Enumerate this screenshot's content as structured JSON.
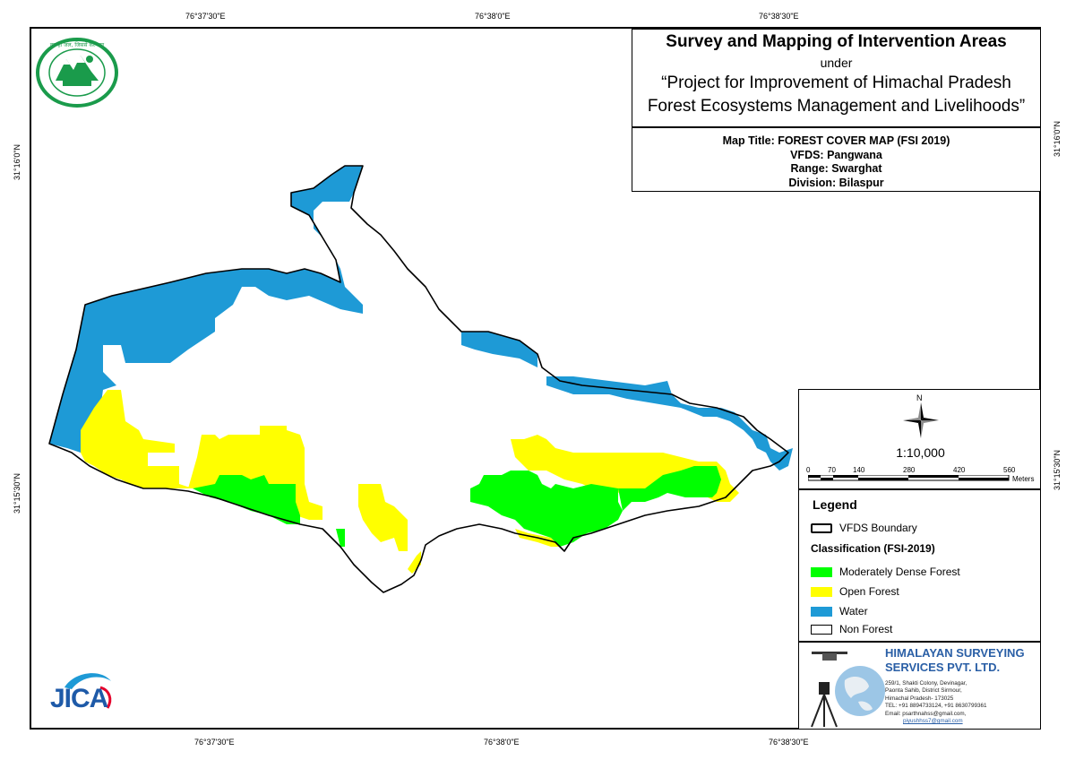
{
  "coordinates": {
    "top": [
      "76°37'30\"E",
      "76°38'0\"E",
      "76°38'30\"E"
    ],
    "bottom": [
      "76°37'30\"E",
      "76°38'0\"E",
      "76°38'30\"E"
    ],
    "left": [
      "31°16'0\"N",
      "31°15'30\"N"
    ],
    "right": [
      "31°16'0\"N",
      "31°15'30\"N"
    ]
  },
  "title_block": {
    "title": "Survey and Mapping of Intervention Areas",
    "under": "under",
    "project_line1": "“Project for Improvement of Himachal Pradesh",
    "project_line2": "Forest Ecosystems Management and Livelihoods”"
  },
  "info": {
    "map_title": "Map Title: FOREST COVER MAP (FSI 2019)",
    "vfds": "VFDS: Pangwana",
    "range": "Range: Swarghat",
    "division": "Division: Bilaspur"
  },
  "north_label": "N",
  "scale": {
    "ratio": "1:10,000",
    "ticks": [
      "0",
      "70",
      "140",
      "280",
      "420",
      "560"
    ],
    "unit": "Meters"
  },
  "legend": {
    "title": "Legend",
    "boundary": "VFDS Boundary",
    "classification_title": "Classification (FSI-2019)",
    "items": [
      {
        "label": "Moderately Dense Forest",
        "color": "#00ff00"
      },
      {
        "label": "Open Forest",
        "color": "#ffff00"
      },
      {
        "label": "Water",
        "color": "#1e9ad6"
      },
      {
        "label": "Non Forest",
        "color": "#ffffff"
      }
    ]
  },
  "company": {
    "name_line1": "HIMALAYAN SURVEYING",
    "name_line2": "SERVICES PVT. LTD.",
    "address": [
      "259/1, Shakti Colony, Devinagar,",
      "Paonta Sahib, District Sirmour,",
      "Himachal Pradesh- 173025",
      "TEL: +91 8894733124, +91 8630799361",
      "Email: psarthnahss@gmail.com,"
    ],
    "email2": "piyushhss7@gmail.com"
  },
  "logos": {
    "hp_forest_emblem_text": "वन ही जल, जिससे कल्याण · वन विभाग हिमाचल प्रदेश",
    "jica_text": "JICA"
  },
  "colors": {
    "moderately_dense": "#00ff00",
    "open": "#ffff00",
    "water": "#1e9ad6",
    "emblem_green": "#1a9b4b",
    "company_blue": "#2a5fa6"
  }
}
